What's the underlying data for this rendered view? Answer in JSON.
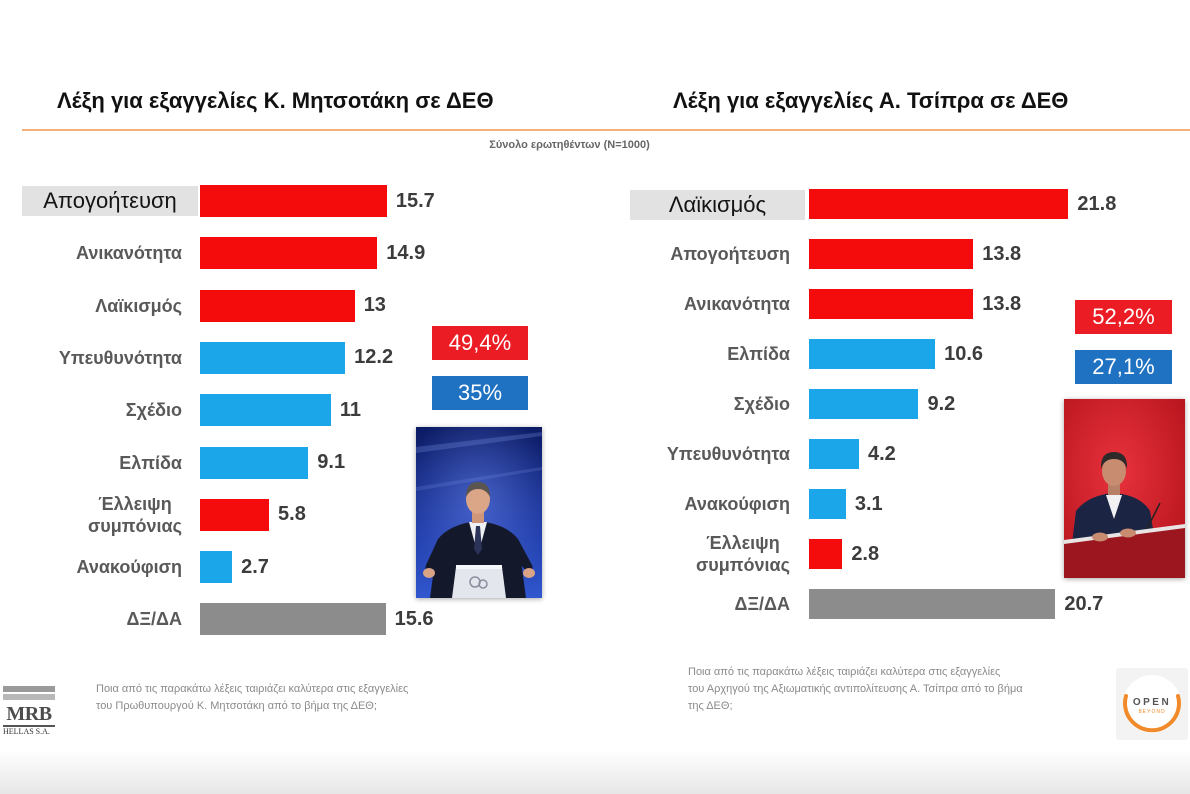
{
  "subtitle": "Σύνολο ερωτηθέντων (N=1000)",
  "colors": {
    "accent_line": "#f3b07a",
    "bar_red": "#f40c0c",
    "bar_blue": "#1aa6e9",
    "bar_gray": "#8c8c8c",
    "badge_red": "#ec1c24",
    "badge_blue": "#1f71c2",
    "highlight_box": "#e2e2e2",
    "logo_orange": "#f08a2a"
  },
  "chart_data": [
    {
      "type": "bar",
      "orientation": "horizontal",
      "title": "Λέξη για εξαγγελίες Κ. Μητσοτάκη σε ΔΕΘ",
      "categories": [
        "Απογοήτευση",
        "Ανικανότητα",
        "Λαϊκισμός",
        "Υπευθυνότητα",
        "Σχέδιο",
        "Ελπίδα",
        "Έλλειψη\nσυμπόνιας",
        "Ανακούφιση",
        "ΔΞ/ΔΑ"
      ],
      "values": [
        15.7,
        14.9,
        13,
        12.2,
        11,
        9.1,
        5.8,
        2.7,
        15.6
      ],
      "bar_colors": [
        "#f40c0c",
        "#f40c0c",
        "#f40c0c",
        "#1aa6e9",
        "#1aa6e9",
        "#1aa6e9",
        "#f40c0c",
        "#1aa6e9",
        "#8c8c8c"
      ],
      "highlight_index": 0,
      "totals": [
        {
          "label": "49,4%",
          "color": "#ec1c24"
        },
        {
          "label": "35%",
          "color": "#1f71c2"
        }
      ],
      "grid": false,
      "legend": "none"
    },
    {
      "type": "bar",
      "orientation": "horizontal",
      "title": "Λέξη για εξαγγελίες Α. Τσίπρα σε ΔΕΘ",
      "categories": [
        "Λαϊκισμός",
        "Απογοήτευση",
        "Ανικανότητα",
        "Ελπίδα",
        "Σχέδιο",
        "Υπευθυνότητα",
        "Ανακούφιση",
        "Έλλειψη\nσυμπόνιας",
        "ΔΞ/ΔΑ"
      ],
      "values": [
        21.8,
        13.8,
        13.8,
        10.6,
        9.2,
        4.2,
        3.1,
        2.8,
        20.7
      ],
      "bar_colors": [
        "#f40c0c",
        "#f40c0c",
        "#f40c0c",
        "#1aa6e9",
        "#1aa6e9",
        "#1aa6e9",
        "#1aa6e9",
        "#f40c0c",
        "#8c8c8c"
      ],
      "highlight_index": 0,
      "totals": [
        {
          "label": "52,2%",
          "color": "#ec1c24"
        },
        {
          "label": "27,1%",
          "color": "#1f71c2"
        }
      ],
      "grid": false,
      "legend": "none"
    }
  ],
  "footer": {
    "left_note": [
      "Ποια από τις παρακάτω λέξεις ταιριάζει καλύτερα στις εξαγγελίες",
      "του Πρωθυπουργού Κ. Μητσοτάκη από το βήμα της ΔΕΘ;"
    ],
    "right_note": [
      "Ποια από τις παρακάτω λέξεις ταιριάζει καλύτερα στις εξαγγελίες",
      "του Αρχηγού της Αξιωματικής αντιπολίτευσης Α. Τσίπρα από το βήμα",
      "της ΔΕΘ;"
    ],
    "logo_left": {
      "text": "MRB",
      "subtext": "HELLAS S.A."
    },
    "logo_right": {
      "text": "OPEN",
      "subtext": "BEYOND"
    }
  }
}
